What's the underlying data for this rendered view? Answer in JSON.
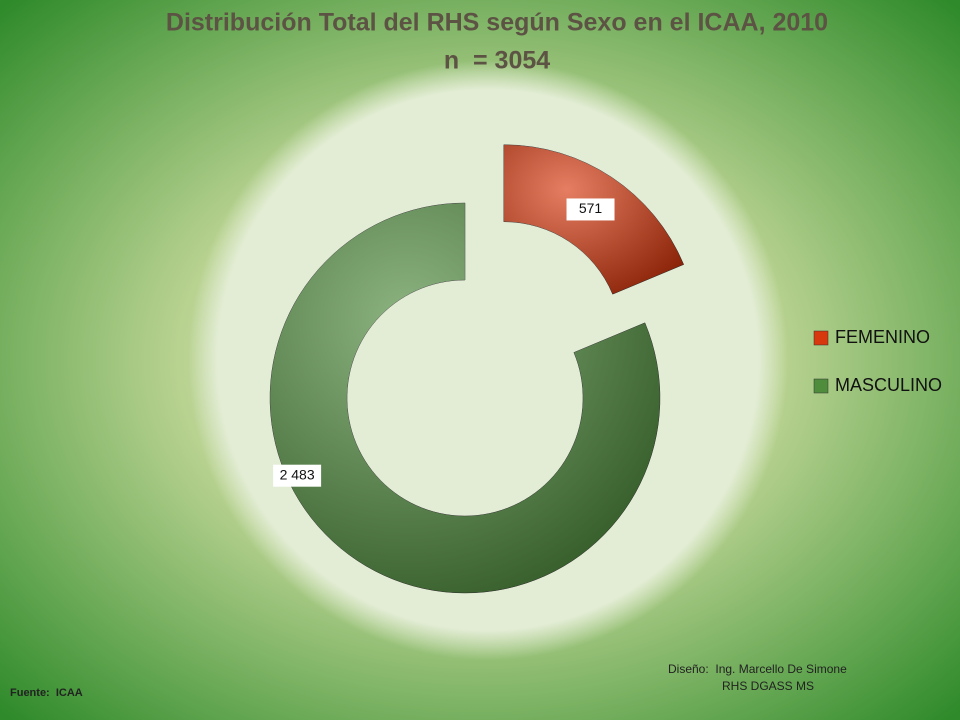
{
  "chart_data": {
    "type": "donut",
    "title": "Distribución Total del RHS según Sexo en el ICAA, 2010",
    "subtitle": "n  = 3054",
    "categories": [
      "FEMENINO",
      "MASCULINO"
    ],
    "values": [
      571,
      2483
    ],
    "value_labels": [
      "571",
      "2 483"
    ],
    "colors": [
      "#d8380e",
      "#4f8c3c"
    ],
    "legend": "right"
  },
  "footer": {
    "source": "Fuente:  ICAA",
    "design": "Diseño:  Ing. Marcello De Simone",
    "design_org": "RHS DGASS MS"
  }
}
